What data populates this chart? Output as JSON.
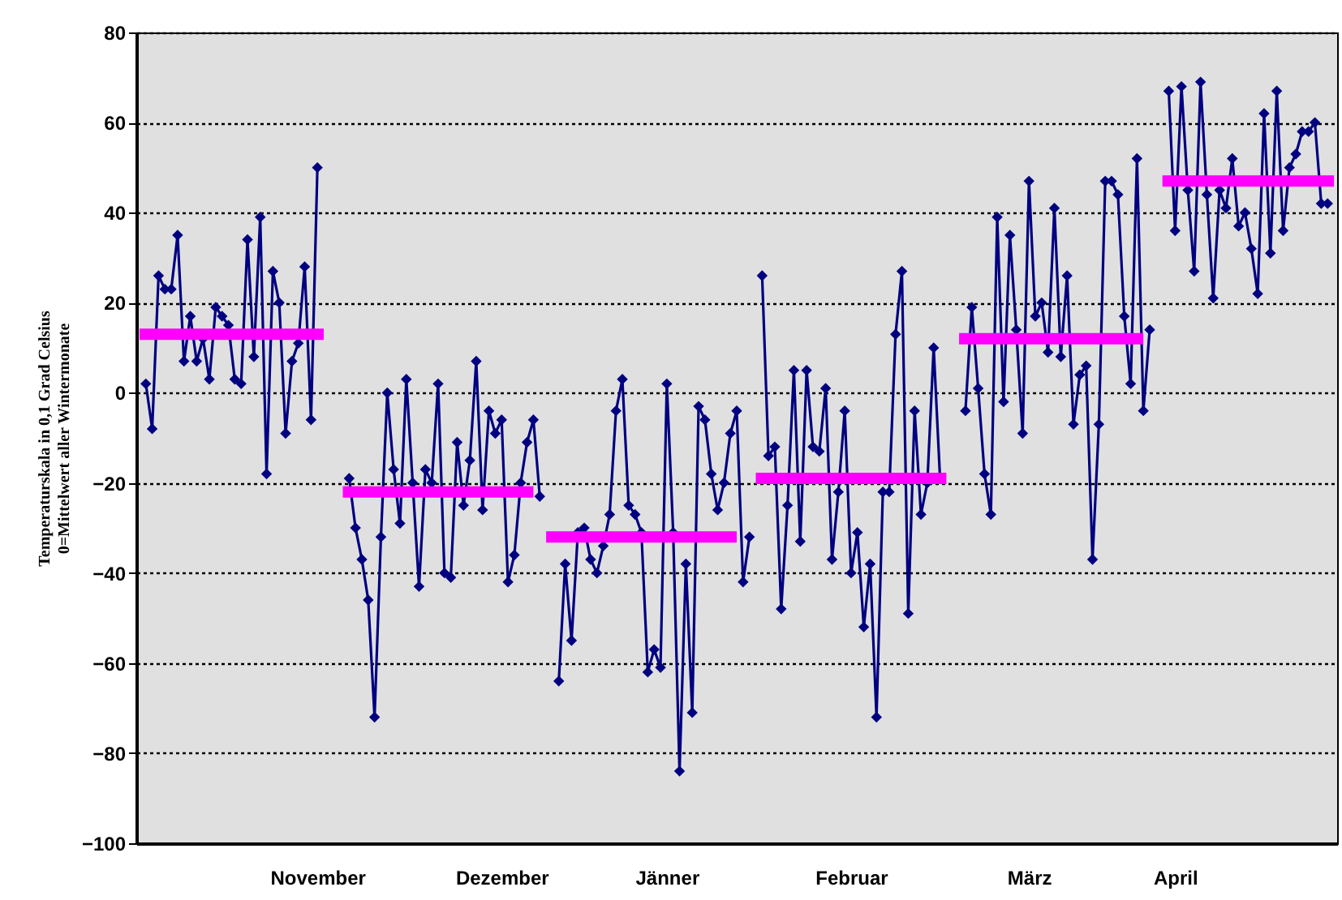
{
  "chart_data": {
    "type": "line",
    "ylabel": "Temperaturskala in 0,1 Grad Celsius\n0=Mittelwert aller Wintermonate",
    "categories": [
      null,
      null,
      null,
      null,
      null,
      null,
      null,
      null,
      null,
      null,
      null,
      null,
      null,
      null,
      null,
      null,
      null,
      null,
      null,
      null,
      null,
      null,
      null,
      null,
      null,
      null,
      null,
      null,
      "November",
      null,
      null,
      null,
      null,
      null,
      null,
      null,
      null,
      null,
      null,
      null,
      null,
      null,
      null,
      null,
      null,
      null,
      null,
      null,
      null,
      null,
      null,
      null,
      null,
      null,
      null,
      null,
      null,
      "Dezember",
      null,
      null,
      null,
      null,
      null,
      null,
      null,
      null,
      null,
      null,
      null,
      null,
      null,
      null,
      null,
      null,
      null,
      null,
      null,
      null,
      null,
      null,
      null,
      null,
      null,
      "Jänner",
      null,
      null,
      null,
      null,
      null,
      null,
      null,
      null,
      null,
      null,
      null,
      null,
      null,
      null,
      null,
      null,
      null,
      null,
      null,
      null,
      null,
      null,
      null,
      null,
      null,
      null,
      null,
      null,
      "Februar",
      null,
      null,
      null,
      null,
      null,
      null,
      null,
      null,
      null,
      null,
      null,
      null,
      null,
      null,
      null,
      null,
      null,
      null,
      null,
      null,
      null,
      null,
      null,
      null,
      null,
      null,
      null,
      "März",
      null,
      null,
      null,
      null,
      null,
      null,
      null,
      null,
      null,
      null,
      null,
      null,
      null,
      null,
      null,
      null,
      null,
      null,
      null,
      null,
      null,
      null,
      "April",
      null,
      null,
      null,
      null,
      null,
      null,
      null,
      null,
      null,
      null,
      null,
      null,
      null,
      null,
      null,
      null,
      null,
      null,
      null,
      null,
      null,
      null,
      null,
      null,
      null
    ],
    "ylim": [
      -100,
      80
    ],
    "yticks": [
      -100,
      -80,
      -60,
      -40,
      -20,
      0,
      20,
      40,
      60,
      80
    ],
    "grid": "y",
    "marker": "diamond",
    "line_style": "solid",
    "series": [
      {
        "color": "#000080",
        "values": [
          null,
          2,
          -8,
          26,
          23,
          23,
          35,
          7,
          17,
          7,
          12,
          3,
          19,
          17,
          15,
          3,
          2,
          34,
          8,
          39,
          -18,
          27,
          20,
          -9,
          7,
          11,
          28,
          -6,
          50,
          null,
          null,
          null,
          null,
          -19,
          -30,
          -37,
          -46,
          -72,
          -32,
          0,
          -17,
          -29,
          3,
          -20,
          -43,
          -17,
          -20,
          2,
          -40,
          -41,
          -11,
          -25,
          -15,
          7,
          -26,
          -4,
          -9,
          -6,
          -42,
          -36,
          -20,
          -11,
          -6,
          -23,
          null,
          null,
          -64,
          -38,
          -55,
          -31,
          -30,
          -37,
          -40,
          -34,
          -27,
          -4,
          3,
          -25,
          -27,
          -31,
          -62,
          -57,
          -61,
          2,
          -31,
          -84,
          -38,
          -71,
          -3,
          -6,
          -18,
          -26,
          -20,
          -9,
          -4,
          -42,
          -32,
          null,
          26,
          -14,
          -12,
          -48,
          -25,
          5,
          -33,
          5,
          -12,
          -13,
          1,
          -37,
          -22,
          -4,
          -40,
          -31,
          -52,
          -38,
          -72,
          -22,
          -22,
          13,
          27,
          -49,
          -4,
          -27,
          -20,
          10,
          -19,
          null,
          null,
          null,
          -4,
          19,
          1,
          -18,
          -27,
          39,
          -2,
          35,
          14,
          -9,
          47,
          17,
          20,
          9,
          41,
          8,
          26,
          -7,
          4,
          6,
          -37,
          -7,
          47,
          47,
          44,
          17,
          2,
          52,
          -4,
          14,
          null,
          null,
          67,
          36,
          68,
          45,
          27,
          69,
          44,
          21,
          45,
          41,
          52,
          37,
          40,
          32,
          22,
          62,
          31,
          67,
          36,
          50,
          53,
          58,
          58,
          60,
          42,
          42,
          null
        ]
      },
      {
        "color": "#ff00ff",
        "marker": "none",
        "values": [
          13,
          13,
          13,
          13,
          13,
          13,
          13,
          13,
          13,
          13,
          13,
          13,
          13,
          13,
          13,
          13,
          13,
          13,
          13,
          13,
          13,
          13,
          13,
          13,
          13,
          13,
          13,
          13,
          13,
          13,
          null,
          null,
          -22,
          -22,
          -22,
          -22,
          -22,
          -22,
          -22,
          -22,
          -22,
          -22,
          -22,
          -22,
          -22,
          -22,
          -22,
          -22,
          -22,
          -22,
          -22,
          -22,
          -22,
          -22,
          -22,
          -22,
          -22,
          -22,
          -22,
          -22,
          -22,
          -22,
          -22,
          null,
          -32,
          -32,
          -32,
          -32,
          -32,
          -32,
          -32,
          -32,
          -32,
          -32,
          -32,
          -32,
          -32,
          -32,
          -32,
          -32,
          -32,
          -32,
          -32,
          -32,
          -32,
          -32,
          -32,
          -32,
          -32,
          -32,
          -32,
          -32,
          -32,
          -32,
          -32,
          null,
          null,
          -19,
          -19,
          -19,
          -19,
          -19,
          -19,
          -19,
          -19,
          -19,
          -19,
          -19,
          -19,
          -19,
          -19,
          -19,
          -19,
          -19,
          -19,
          -19,
          -19,
          -19,
          -19,
          -19,
          -19,
          -19,
          -19,
          -19,
          -19,
          -19,
          -19,
          -19,
          null,
          12,
          12,
          12,
          12,
          12,
          12,
          12,
          12,
          12,
          12,
          12,
          12,
          12,
          12,
          12,
          12,
          12,
          12,
          12,
          12,
          12,
          12,
          12,
          12,
          12,
          12,
          12,
          12,
          12,
          12,
          null,
          null,
          47,
          47,
          47,
          47,
          47,
          47,
          47,
          47,
          47,
          47,
          47,
          47,
          47,
          47,
          47,
          47,
          47,
          47,
          47,
          47,
          47,
          47,
          47,
          47,
          47,
          47,
          47,
          47
        ]
      }
    ]
  }
}
